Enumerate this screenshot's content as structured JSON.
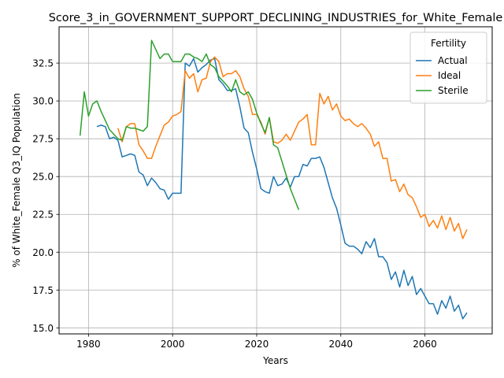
{
  "chart_data": {
    "type": "line",
    "title": "Score_3_in_GOVERNMENT_SUPPORT_DECLINING_INDUSTRIES_for_White_Female",
    "xlabel": "Years",
    "ylabel": "% of White_Female Q3_IQ Population",
    "xlim": [
      1973,
      2076
    ],
    "ylim": [
      14.6,
      34.9
    ],
    "xticks": [
      1980,
      2000,
      2020,
      2040,
      2060
    ],
    "yticks": [
      15.0,
      17.5,
      20.0,
      22.5,
      25.0,
      27.5,
      30.0,
      32.5
    ],
    "grid": true,
    "legend": {
      "title": "Fertility",
      "placement": "top-right"
    },
    "series": [
      {
        "name": "Actual",
        "color": "#1f77b4",
        "x": [
          1982,
          1983,
          1984,
          1985,
          1986,
          1987,
          1988,
          1989,
          1990,
          1991,
          1992,
          1993,
          1994,
          1995,
          1996,
          1997,
          1998,
          1999,
          2000,
          2001,
          2002,
          2003,
          2004,
          2005,
          2006,
          2007,
          2008,
          2009,
          2010,
          2011,
          2012,
          2013,
          2014,
          2015,
          2016,
          2017,
          2018,
          2019,
          2020,
          2021,
          2022,
          2023,
          2024,
          2025,
          2026,
          2027,
          2028,
          2029,
          2030,
          2031,
          2032,
          2033,
          2034,
          2035,
          2036,
          2037,
          2038,
          2039,
          2040,
          2041,
          2042,
          2043,
          2044,
          2045,
          2046,
          2047,
          2048,
          2049,
          2050,
          2051,
          2052,
          2053,
          2054,
          2055,
          2056,
          2057,
          2058,
          2059,
          2060,
          2061,
          2062,
          2063,
          2064,
          2065,
          2066,
          2067,
          2068,
          2069,
          2070
        ],
        "values": [
          28.3,
          28.4,
          28.3,
          27.5,
          27.6,
          27.4,
          26.3,
          26.4,
          26.5,
          26.4,
          25.3,
          25.1,
          24.4,
          24.9,
          24.6,
          24.2,
          24.1,
          23.5,
          23.9,
          23.9,
          23.9,
          32.5,
          32.3,
          32.8,
          31.9,
          32.2,
          32.4,
          32.7,
          32.8,
          31.4,
          31.1,
          30.7,
          30.7,
          30.8,
          29.6,
          28.2,
          27.9,
          26.6,
          25.5,
          24.2,
          24.0,
          23.9,
          25.0,
          24.4,
          24.5,
          24.9,
          24.3,
          25.0,
          25.0,
          25.8,
          25.7,
          26.2,
          26.2,
          26.3,
          25.6,
          24.6,
          23.6,
          22.9,
          21.8,
          20.6,
          20.4,
          20.4,
          20.2,
          19.9,
          20.7,
          20.3,
          20.9,
          19.7,
          19.7,
          19.3,
          18.2,
          18.7,
          17.7,
          18.8,
          17.8,
          18.4,
          17.2,
          17.6,
          17.1,
          16.6,
          16.6,
          15.9,
          16.8,
          16.3,
          17.1,
          16.1,
          16.5,
          15.6,
          16.0
        ]
      },
      {
        "name": "Ideal",
        "color": "#ff7f0e",
        "x": [
          1987,
          1988,
          1989,
          1990,
          1991,
          1992,
          1993,
          1994,
          1995,
          1996,
          1997,
          1998,
          1999,
          2000,
          2001,
          2002,
          2003,
          2004,
          2005,
          2006,
          2007,
          2008,
          2009,
          2010,
          2011,
          2012,
          2013,
          2014,
          2015,
          2016,
          2017,
          2018,
          2019,
          2020,
          2021,
          2022,
          2023,
          2024,
          2025,
          2026,
          2027,
          2028,
          2029,
          2030,
          2031,
          2032,
          2033,
          2034,
          2035,
          2036,
          2037,
          2038,
          2039,
          2040,
          2041,
          2042,
          2043,
          2044,
          2045,
          2046,
          2047,
          2048,
          2049,
          2050,
          2051,
          2052,
          2053,
          2054,
          2055,
          2056,
          2057,
          2058,
          2059,
          2060,
          2061,
          2062,
          2063,
          2064,
          2065,
          2066,
          2067,
          2068,
          2069,
          2070
        ],
        "values": [
          28.2,
          27.3,
          28.3,
          28.5,
          28.5,
          27.1,
          26.7,
          26.2,
          26.2,
          27.0,
          27.7,
          28.4,
          28.6,
          29.0,
          29.1,
          29.3,
          32.0,
          31.5,
          31.8,
          30.6,
          31.4,
          31.5,
          32.6,
          32.9,
          32.6,
          31.6,
          31.8,
          31.8,
          32.0,
          31.6,
          30.8,
          30.3,
          29.1,
          29.1,
          28.6,
          27.8,
          28.9,
          27.3,
          27.2,
          27.4,
          27.8,
          27.4,
          28.0,
          28.6,
          28.8,
          29.1,
          27.1,
          27.1,
          30.5,
          29.8,
          30.3,
          29.4,
          29.8,
          29.0,
          28.7,
          28.8,
          28.5,
          28.3,
          28.5,
          28.2,
          27.8,
          27.0,
          27.3,
          26.2,
          26.2,
          24.7,
          24.8,
          24.0,
          24.5,
          23.8,
          23.6,
          23.0,
          22.3,
          22.5,
          21.7,
          22.1,
          21.6,
          22.4,
          21.5,
          22.3,
          21.4,
          21.9,
          20.9,
          21.5
        ]
      },
      {
        "name": "Sterile",
        "color": "#2ca02c",
        "x": [
          1978,
          1979,
          1980,
          1981,
          1982,
          1983,
          1984,
          1985,
          1986,
          1987,
          1988,
          1989,
          1990,
          1991,
          1992,
          1993,
          1994,
          1995,
          1996,
          1997,
          1998,
          1999,
          2000,
          2001,
          2002,
          2003,
          2004,
          2005,
          2006,
          2007,
          2008,
          2009,
          2010,
          2011,
          2012,
          2013,
          2014,
          2015,
          2016,
          2017,
          2018,
          2019,
          2020,
          2021,
          2022,
          2023,
          2024,
          2025,
          2026,
          2027,
          2028,
          2029,
          2030
        ],
        "values": [
          27.7,
          30.6,
          29.0,
          29.8,
          30.0,
          29.3,
          28.7,
          28.1,
          27.8,
          27.5,
          27.4,
          28.3,
          28.2,
          28.2,
          28.1,
          28.0,
          28.3,
          34.0,
          33.4,
          32.8,
          33.1,
          33.1,
          32.6,
          32.6,
          32.6,
          33.1,
          33.1,
          32.9,
          32.8,
          32.6,
          33.1,
          32.4,
          32.2,
          31.6,
          31.3,
          31.0,
          30.6,
          31.4,
          30.6,
          30.4,
          30.6,
          30.1,
          29.2,
          28.5,
          27.9,
          28.9,
          27.1,
          26.9,
          26.0,
          25.1,
          24.2,
          23.5,
          22.8
        ]
      }
    ]
  }
}
